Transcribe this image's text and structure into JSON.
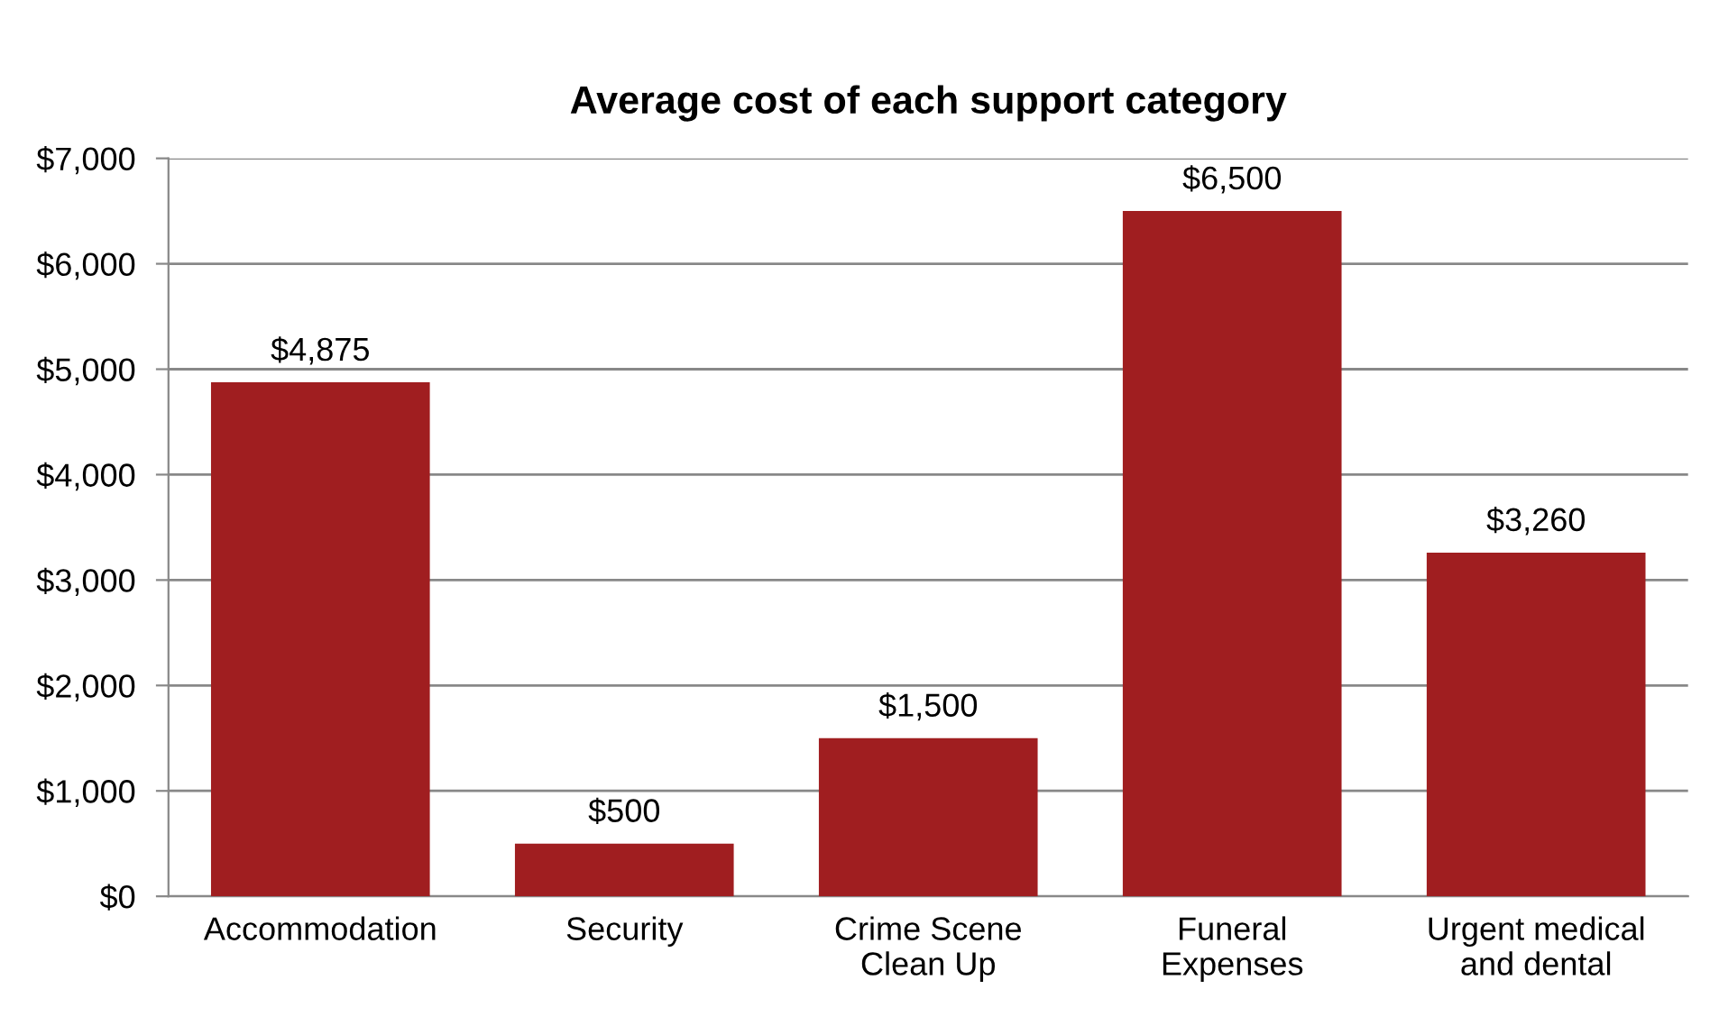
{
  "chart_data": {
    "type": "bar",
    "title": "Average cost of each support category",
    "categories": [
      "Accommodation",
      "Security",
      "Crime Scene\nClean Up",
      "Funeral\nExpenses",
      "Urgent medical\nand dental"
    ],
    "values": [
      4875,
      500,
      1500,
      6500,
      3260
    ],
    "value_labels": [
      "$4,875",
      "$500",
      "$1,500",
      "$6,500",
      "$3,260"
    ],
    "color": "#a01e20",
    "ylim": [
      0,
      7000
    ],
    "yticks": [
      {
        "value": 0,
        "label": "$0"
      },
      {
        "value": 1000,
        "label": "$1,000"
      },
      {
        "value": 2000,
        "label": "$2,000"
      },
      {
        "value": 3000,
        "label": "$3,000"
      },
      {
        "value": 4000,
        "label": "$4,000"
      },
      {
        "value": 5000,
        "label": "$5,000"
      },
      {
        "value": 6000,
        "label": "$6,000"
      },
      {
        "value": 7000,
        "label": "$7,000"
      }
    ],
    "grid": "y",
    "legend": false
  }
}
